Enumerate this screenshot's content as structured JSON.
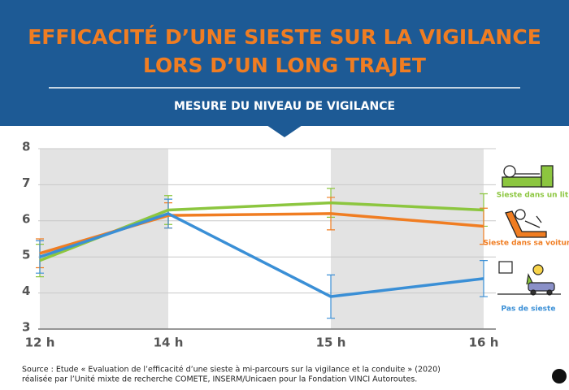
{
  "chart_data": {
    "type": "line",
    "title": [
      "EFFICACITÉ D’UNE SIESTE SUR LA VIGILANCE",
      "LORS D’UN LONG TRAJET"
    ],
    "subtitle": "MESURE DU NIVEAU DE VIGILANCE",
    "categories": [
      "12 h",
      "14 h",
      "15 h",
      "16 h"
    ],
    "ylim": [
      3,
      8
    ],
    "yticks": [
      3,
      4,
      5,
      6,
      7,
      8
    ],
    "grid": true,
    "series": [
      {
        "name": "Sieste dans un lit",
        "color": "#8cc63f",
        "values": [
          4.9,
          6.3,
          6.5,
          6.3
        ],
        "errors": [
          0.45,
          0.4,
          0.4,
          0.45
        ]
      },
      {
        "name": "Sieste dans sa voiture",
        "color": "#f07d22",
        "values": [
          5.1,
          6.15,
          6.2,
          5.85
        ],
        "errors": [
          0.4,
          0.35,
          0.45,
          0.5
        ]
      },
      {
        "name": "Pas de sieste",
        "color": "#3a8fd6",
        "values": [
          5.0,
          6.2,
          3.9,
          4.4
        ],
        "errors": [
          0.45,
          0.4,
          0.6,
          0.5
        ]
      }
    ],
    "source": [
      "Source : Etude « Evaluation de l’efficacité d’une sieste à mi-parcours sur la vigilance et la conduite » (2020)",
      "réalisée par l’Unité mixte de recherche COMETE, INSERM/Unicaen pour la Fondation VINCI Autoroutes."
    ]
  }
}
